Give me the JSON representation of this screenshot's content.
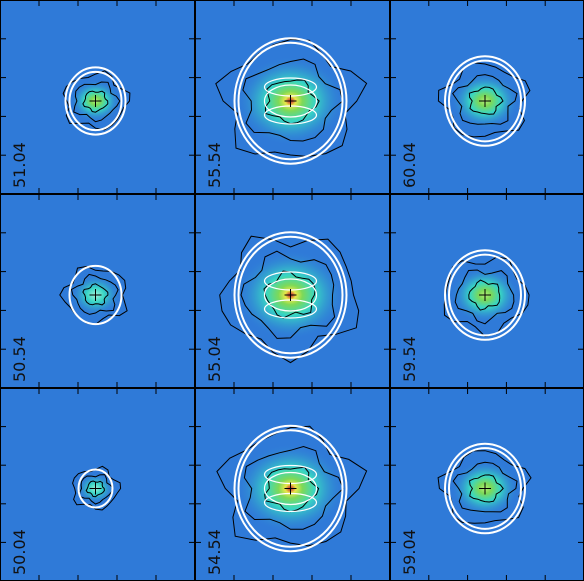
{
  "figure": {
    "panels": [
      {
        "label": "51.04",
        "row": 0,
        "col": 0,
        "source_size": "small",
        "rings": 2,
        "peak": "green"
      },
      {
        "label": "55.54",
        "row": 0,
        "col": 1,
        "source_size": "large",
        "rings": 2,
        "peak": "red"
      },
      {
        "label": "60.04",
        "row": 0,
        "col": 2,
        "source_size": "medium",
        "rings": 2,
        "peak": "green"
      },
      {
        "label": "50.54",
        "row": 1,
        "col": 0,
        "source_size": "small",
        "rings": 1,
        "peak": "cyan"
      },
      {
        "label": "55.04",
        "row": 1,
        "col": 1,
        "source_size": "large",
        "rings": 2,
        "peak": "red"
      },
      {
        "label": "59.54",
        "row": 1,
        "col": 2,
        "source_size": "medium",
        "rings": 2,
        "peak": "green"
      },
      {
        "label": "50.04",
        "row": 2,
        "col": 0,
        "source_size": "tiny",
        "rings": 1,
        "peak": "cyan"
      },
      {
        "label": "54.54",
        "row": 2,
        "col": 1,
        "source_size": "large",
        "rings": 2,
        "peak": "red"
      },
      {
        "label": "59.04",
        "row": 2,
        "col": 2,
        "source_size": "medium",
        "rings": 2,
        "peak": "green"
      }
    ],
    "colors": {
      "background": "#2f7ad8",
      "contour": "#000000",
      "model_ring": "#ffffff",
      "peak_red": "#c8102e",
      "peak_green": "#7ed957",
      "halo_cyan": "#38d6c4"
    }
  }
}
